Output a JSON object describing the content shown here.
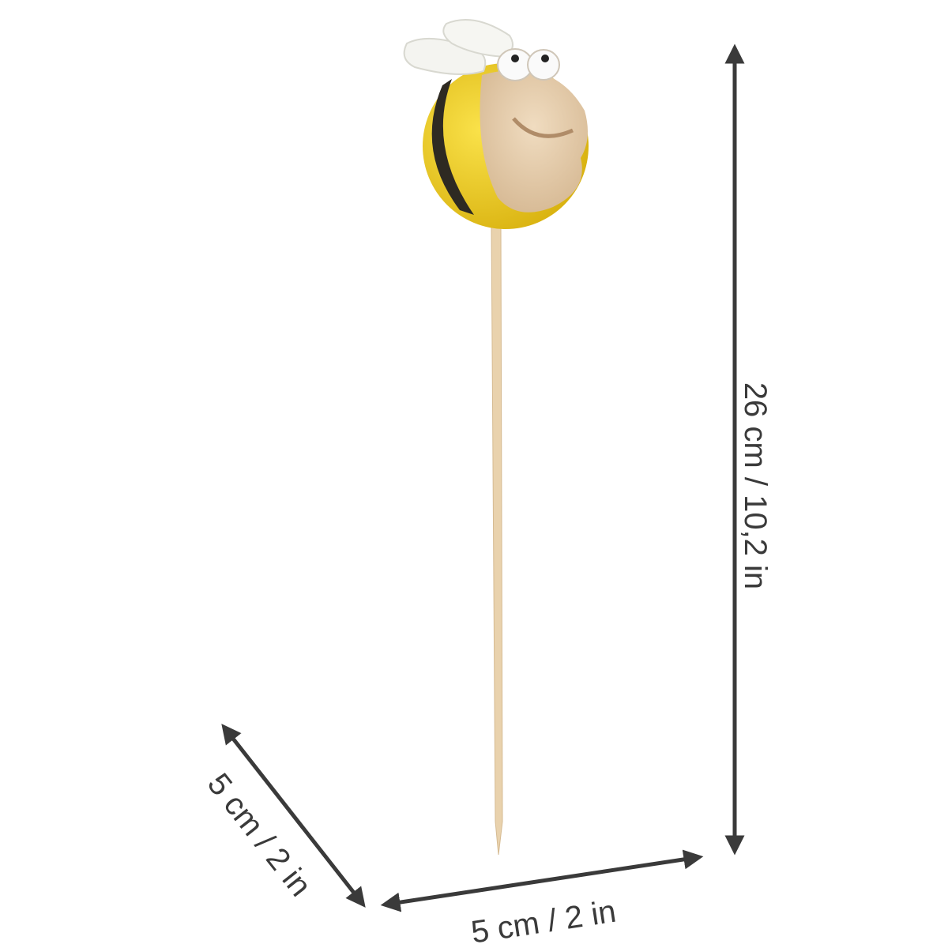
{
  "dimensions": {
    "height_label": "26 cm / 10,2 in",
    "width_label": "5 cm / 2 in",
    "depth_label": "5 cm / 2 in"
  },
  "colors": {
    "dimension_line": "#3a3a3a",
    "bee_yellow": "#f2d21c",
    "bee_stripe": "#2e2a22",
    "bee_face": "#e8cfae",
    "wing": "#f4f4f0",
    "stick": "#e9d2ad"
  }
}
